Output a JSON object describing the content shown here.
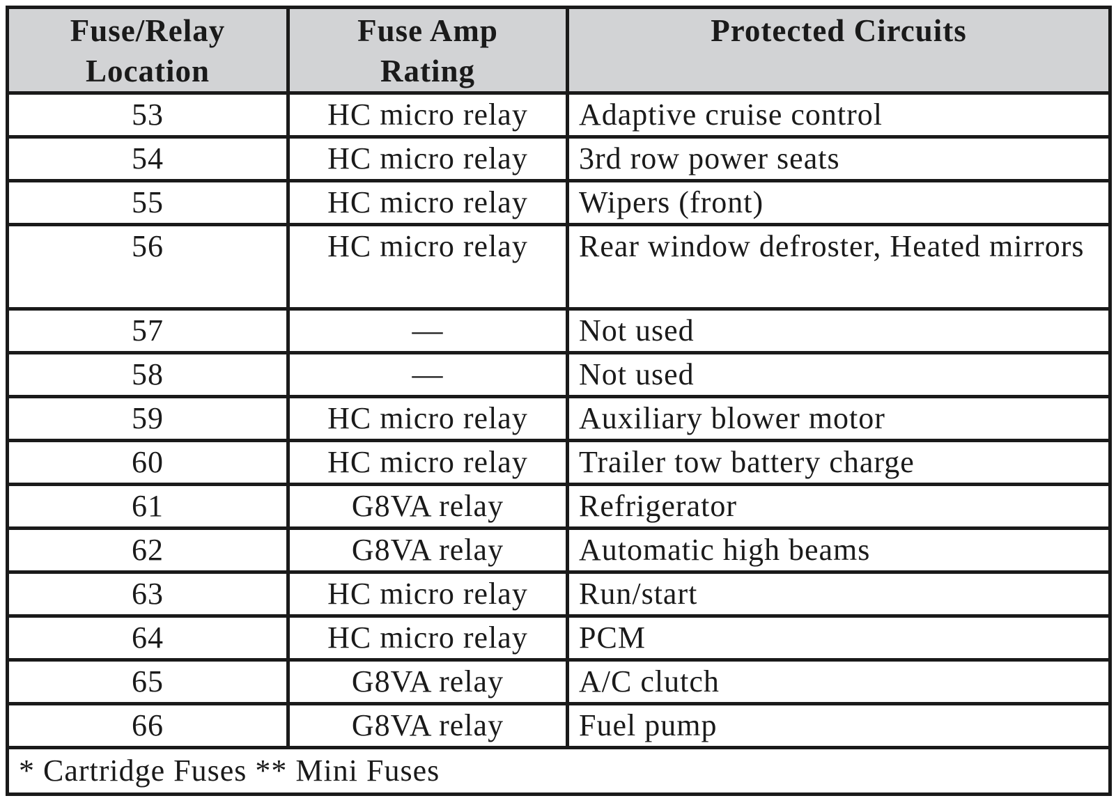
{
  "table": {
    "headers": [
      "Fuse/Relay Location",
      "Fuse Amp Rating",
      "Protected Circuits"
    ],
    "header_lines": [
      [
        "Fuse/Relay",
        "Location"
      ],
      [
        "Fuse Amp",
        "Rating"
      ],
      [
        "Protected Circuits"
      ]
    ],
    "rows": [
      {
        "location": "53",
        "rating": "HC micro relay",
        "circuits": "Adaptive cruise control"
      },
      {
        "location": "54",
        "rating": "HC micro relay",
        "circuits": "3rd row power seats"
      },
      {
        "location": "55",
        "rating": "HC micro relay",
        "circuits": "Wipers (front)"
      },
      {
        "location": "56",
        "rating": "HC micro relay",
        "circuits": "Rear window defroster, Heated mirrors"
      },
      {
        "location": "57",
        "rating": "—",
        "circuits": "Not used"
      },
      {
        "location": "58",
        "rating": "—",
        "circuits": "Not used"
      },
      {
        "location": "59",
        "rating": "HC micro relay",
        "circuits": "Auxiliary blower motor"
      },
      {
        "location": "60",
        "rating": "HC micro relay",
        "circuits": "Trailer tow battery charge"
      },
      {
        "location": "61",
        "rating": "G8VA relay",
        "circuits": "Refrigerator"
      },
      {
        "location": "62",
        "rating": "G8VA relay",
        "circuits": "Automatic high beams"
      },
      {
        "location": "63",
        "rating": "HC micro relay",
        "circuits": "Run/start"
      },
      {
        "location": "64",
        "rating": "HC micro relay",
        "circuits": "PCM"
      },
      {
        "location": "65",
        "rating": "G8VA relay",
        "circuits": "A/C clutch"
      },
      {
        "location": "66",
        "rating": "G8VA relay",
        "circuits": "Fuel pump"
      }
    ],
    "footnote": "* Cartridge Fuses ** Mini Fuses",
    "colors": {
      "header_bg": "#d2d3d5",
      "border": "#1a1a1a"
    }
  }
}
